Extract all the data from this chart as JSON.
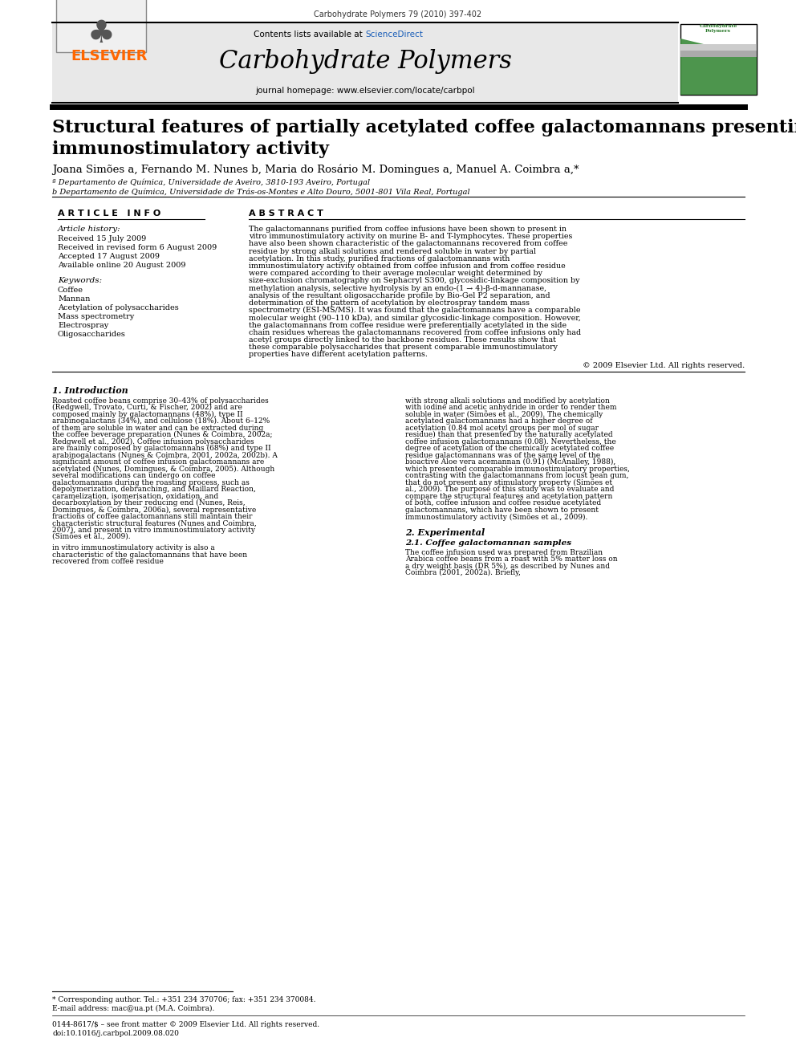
{
  "journal_info": "Carbohydrate Polymers 79 (2010) 397-402",
  "contents_line": "Contents lists available at ScienceDirect",
  "sciencedirect_color": "#1a5eb8",
  "journal_name": "Carbohydrate Polymers",
  "journal_homepage": "journal homepage: www.elsevier.com/locate/carbpol",
  "elsevier_color": "#ff6600",
  "elsevier_text": "ELSEVIER",
  "title": "Structural features of partially acetylated coffee galactomannans presenting\nimmunostimulatory activity",
  "authors": "Joana Simões a, Fernando M. Nunes b, Maria do Rosário M. Domingues a, Manuel A. Coimbra a,*",
  "affil_a": "ª Departamento de Química, Universidade de Aveiro, 3810-193 Aveiro, Portugal",
  "affil_b": "b Departamento de Química, Universidade de Trás-os-Montes e Alto Douro, 5001-801 Vila Real, Portugal",
  "article_info_header": "A R T I C L E   I N F O",
  "abstract_header": "A B S T R A C T",
  "article_history_label": "Article history:",
  "received": "Received 15 July 2009",
  "received_revised": "Received in revised form 6 August 2009",
  "accepted": "Accepted 17 August 2009",
  "available": "Available online 20 August 2009",
  "keywords_label": "Keywords:",
  "keywords": [
    "Coffee",
    "Mannan",
    "Acetylation of polysaccharides",
    "Mass spectrometry",
    "Electrospray",
    "Oligosaccharides"
  ],
  "abstract_text": "The galactomannans purified from coffee infusions have been shown to present in vitro immunostimulatory activity on murine B- and T-lymphocytes. These properties have also been shown characteristic of the galactomannans recovered from coffee residue by strong alkali solutions and rendered soluble in water by partial acetylation. In this study, purified fractions of galactomannans with immunostimulatory activity obtained from coffee infusion and from coffee residue were compared according to their average molecular weight determined by size-exclusion chromatography on Sephacryl S300, glycosidic-linkage composition by methylation analysis, selective hydrolysis by an endo-(1 → 4)-β-d-mannanase, analysis of the resultant oligosaccharide profile by Bio-Gel P2 separation, and determination of the pattern of acetylation by electrospray tandem mass spectrometry (ESI-MS/MS). It was found that the galactomannans have a comparable molecular weight (90–110 kDa), and similar glycosidic-linkage composition. However, the galactomannans from coffee residue were preferentially acetylated in the side chain residues whereas the galactomannans recovered from coffee infusions only had acetyl groups directly linked to the backbone residues. These results show that these comparable polysaccharides that present comparable immunostimulatory properties have different acetylation patterns.",
  "copyright": "© 2009 Elsevier Ltd. All rights reserved.",
  "section1_title": "1. Introduction",
  "intro_text1": "Roasted coffee beans comprise 30–43% of polysaccharides (Redgwell, Trovato, Curti, & Fischer, 2002) and are composed mainly by galactomannans (48%), type II arabinogalactans (34%), and cellulose (18%). About 6–12% of them are soluble in water and can be extracted during the coffee beverage preparation (Nunes & Coimbra, 2002a; Redgwell et al., 2002). Coffee infusion polysaccharides are mainly composed by galactomannans (68%) and type II arabinogalactans (Nunes & Coimbra, 2001, 2002a, 2002b). A significant amount of coffee infusion galactomannans are acetylated (Nunes, Domingues, & Coimbra, 2005). Although several modifications can undergo on coffee galactomannans during the roasting process, such as depolymerization, debranching, and Maillard Reaction, caramelization, isomerisation, oxidation, and decarboxylation by their reducing end (Nunes, Reis, Domingues, & Coimbra, 2006a), several representative fractions of coffee galactomannans still maintain their characteristic structural features (Nunes and Coimbra, 2007), and present in vitro immunostimulatory activity (Simões et al., 2009).",
  "intro_text2": "in vitro immunostimulatory activity is also a characteristic of the galactomannans that have been recovered from coffee residue",
  "right_col_text": "with strong alkali solutions and modified by acetylation with iodine and acetic anhydride in order to render them soluble in water (Simões et al., 2009). The chemically acetylated galactomannans had a higher degree of acetylation (0.84 mol acetyl groups per mol of sugar residue) than that presented by the naturally acetylated coffee infusion galactomannans (0.08). Nevertheless, the degree of acetylation of the chemically acetylated coffee residue galactomannans was of the same level of the bioactive Aloe vera acemannan (0.91) (McAnalley, 1988), which presented comparable immunostimulatory properties, contrasting with the galactomannans from locust bean gum, that do not present any stimulatory property (Simões et al., 2009). The purpose of this study was to evaluate and compare the structural features and acetylation pattern of both, coffee infusion and coffee residue acetylated galactomannans, which have been shown to present immunostimulatory activity (Simões et al., 2009).",
  "section2_title": "2. Experimental",
  "section21_title": "2.1. Coffee galactomannan samples",
  "section21_text": "The coffee infusion used was prepared from Brazilian Arabica coffee beans from a roast with 5% matter loss on a dry weight basis (DR 5%), as described by Nunes and Coimbra (2001, 2002a). Briefly,",
  "footnote_corresponding": "* Corresponding author. Tel.: +351 234 370706; fax: +351 234 370084.",
  "footnote_email": "E-mail address: mac@ua.pt (M.A. Coimbra).",
  "footer_issn": "0144-8617/$ – see front matter © 2009 Elsevier Ltd. All rights reserved.",
  "footer_doi": "doi:10.1016/j.carbpol.2009.08.020",
  "bg_color": "#ffffff",
  "header_bg": "#e8e8e8",
  "text_color": "#000000",
  "link_color": "#1a5eb8",
  "section_divider_color": "#000000"
}
